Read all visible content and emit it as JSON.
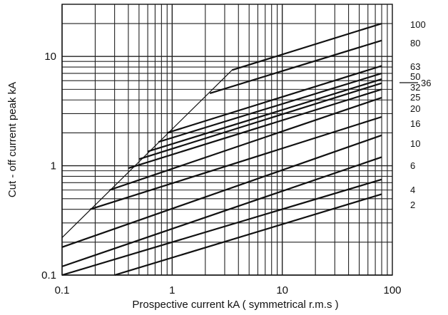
{
  "chart_data": {
    "type": "line",
    "xscale": "log",
    "yscale": "log",
    "xlim": [
      0.1,
      100
    ],
    "ylim": [
      0.1,
      30
    ],
    "grid": true,
    "title": "",
    "xlabel": "Prospective current kA ( symmetrical r.m.s )",
    "ylabel": "Cut - off current peak kA",
    "xticks": [
      {
        "value": 0.1,
        "label": "0.1"
      },
      {
        "value": 1,
        "label": "1"
      },
      {
        "value": 10,
        "label": "10"
      },
      {
        "value": 100,
        "label": "100"
      }
    ],
    "yticks": [
      {
        "value": 0.1,
        "label": "0.1"
      },
      {
        "value": 1,
        "label": "1"
      },
      {
        "value": 10,
        "label": "10"
      }
    ],
    "envelope": {
      "x": [
        0.1,
        3.5
      ],
      "y": [
        0.22,
        7.5
      ]
    },
    "series": [
      {
        "name": "100",
        "x": [
          3.5,
          80
        ],
        "y": [
          7.5,
          20
        ]
      },
      {
        "name": "80",
        "x": [
          2.2,
          80
        ],
        "y": [
          4.6,
          14
        ]
      },
      {
        "name": "63",
        "x": [
          0.9,
          80
        ],
        "y": [
          2.0,
          8.2
        ]
      },
      {
        "name": "50",
        "x": [
          0.75,
          80
        ],
        "y": [
          1.65,
          7.0
        ]
      },
      {
        "name": "36",
        "x": [
          0.6,
          80
        ],
        "y": [
          1.35,
          6.2
        ]
      },
      {
        "name": "32",
        "x": [
          0.5,
          80
        ],
        "y": [
          1.15,
          5.7
        ]
      },
      {
        "name": "25",
        "x": [
          0.4,
          80
        ],
        "y": [
          0.95,
          5.0
        ]
      },
      {
        "name": "20",
        "x": [
          0.27,
          80
        ],
        "y": [
          0.6,
          4.2
        ]
      },
      {
        "name": "16",
        "x": [
          0.18,
          80
        ],
        "y": [
          0.4,
          2.8
        ]
      },
      {
        "name": "10",
        "x": [
          0.1,
          80
        ],
        "y": [
          0.18,
          1.9
        ]
      },
      {
        "name": "6",
        "x": [
          0.1,
          80
        ],
        "y": [
          0.12,
          1.2
        ]
      },
      {
        "name": "4",
        "x": [
          0.1,
          80
        ],
        "y": [
          0.1,
          0.75
        ]
      },
      {
        "name": "2",
        "x": [
          0.3,
          80
        ],
        "y": [
          0.1,
          0.55
        ]
      }
    ]
  }
}
